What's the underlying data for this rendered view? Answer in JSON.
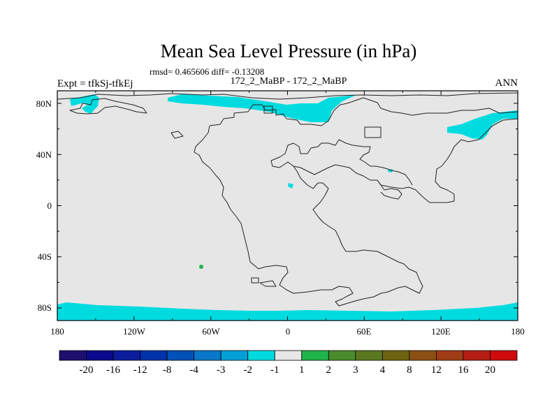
{
  "title": "Mean Sea Level Pressure (in hPa)",
  "stats": "rmsd= 0.465606 diff= -0.13208",
  "left_label": "Expt = tfkSj-tfkEj",
  "center_label": "172_2_MaBP - 172_2_MaBP",
  "right_label": "ANN",
  "map": {
    "background_color": "#e6e6e6",
    "anomaly_color": "#00dbe0",
    "positive_color": "#21b44a",
    "x_ticks": [
      "180",
      "120W",
      "60W",
      "0",
      "60E",
      "120E",
      "180"
    ],
    "y_ticks": [
      "80N",
      "40N",
      "0",
      "40S",
      "80S"
    ]
  },
  "colorbar": {
    "colors": [
      "#1e0f6e",
      "#0a0a8c",
      "#0a1e9c",
      "#0032aa",
      "#0050b9",
      "#0a78c8",
      "#00a0d7",
      "#00dbe0",
      "#e6e6e6",
      "#21b44a",
      "#4a8c2c",
      "#5a7820",
      "#6e6410",
      "#8c5014",
      "#a03c14",
      "#b41e14",
      "#d00a0a"
    ],
    "labels": [
      "-20",
      "-16",
      "-12",
      "-8",
      "-4",
      "-3",
      "-2",
      "-1",
      "1",
      "2",
      "3",
      "4",
      "8",
      "12",
      "16",
      "20"
    ]
  }
}
